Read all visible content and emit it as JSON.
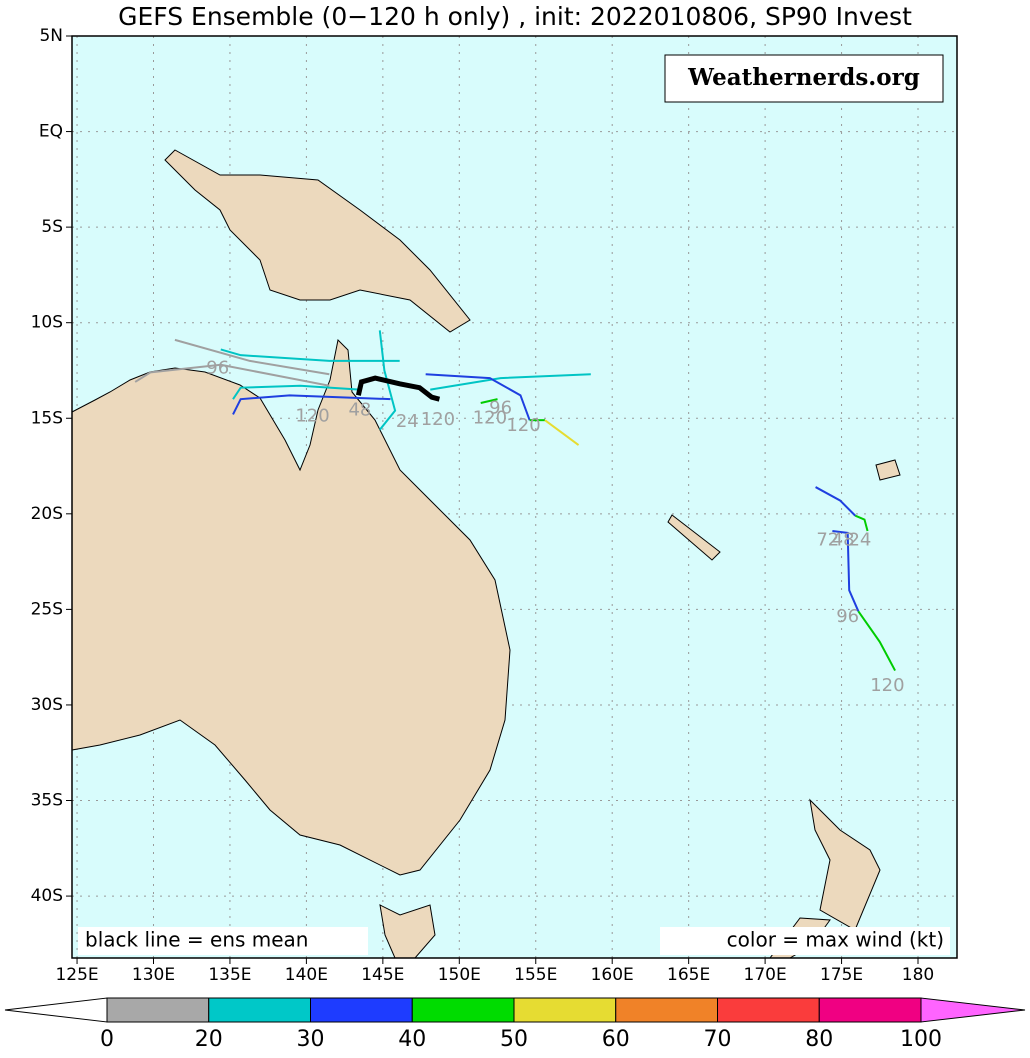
{
  "chart_data": {
    "type": "track-map",
    "title": "GEFS Ensemble (0−120 h only) , init: 2022010806, SP90 Invest",
    "watermark": "Weathernerds.org",
    "note_left": "black line = ens mean",
    "note_right": "color = max wind (kt)",
    "xlim": [
      124.67,
      182.55
    ],
    "ylim": [
      -43.24,
      5
    ],
    "xticks": [
      {
        "value": 125,
        "label": "125E"
      },
      {
        "value": 130,
        "label": "130E"
      },
      {
        "value": 135,
        "label": "135E"
      },
      {
        "value": 140,
        "label": "140E"
      },
      {
        "value": 145,
        "label": "145E"
      },
      {
        "value": 150,
        "label": "150E"
      },
      {
        "value": 155,
        "label": "155E"
      },
      {
        "value": 160,
        "label": "160E"
      },
      {
        "value": 165,
        "label": "165E"
      },
      {
        "value": 170,
        "label": "170E"
      },
      {
        "value": 175,
        "label": "175E"
      },
      {
        "value": 180,
        "label": "180"
      }
    ],
    "yticks": [
      {
        "value": 5,
        "label": "5N"
      },
      {
        "value": 0,
        "label": "EQ"
      },
      {
        "value": -5,
        "label": "5S"
      },
      {
        "value": -10,
        "label": "10S"
      },
      {
        "value": -15,
        "label": "15S"
      },
      {
        "value": -20,
        "label": "20S"
      },
      {
        "value": -25,
        "label": "25S"
      },
      {
        "value": -30,
        "label": "30S"
      },
      {
        "value": -35,
        "label": "35S"
      },
      {
        "value": -40,
        "label": "40S"
      }
    ],
    "grid": true,
    "tracks": [
      {
        "color": "#a0a0a0",
        "lon": [
          141.5,
          136.3,
          131.4
        ],
        "lat": [
          -12.7,
          -12.0,
          -10.9
        ]
      },
      {
        "color": "#a0a0a0",
        "lon": [
          141.5,
          134.4,
          129.8,
          128.8
        ],
        "lat": [
          -13.3,
          -12.2,
          -12.6,
          -13.1
        ]
      },
      {
        "color": "#00c4c4",
        "lon": [
          146.1,
          141.5,
          135.7,
          134.4
        ],
        "lat": [
          -12.0,
          -12.0,
          -11.7,
          -11.4
        ]
      },
      {
        "color": "#00c4c4",
        "lon": [
          143.5,
          139.6,
          135.7,
          135.2
        ],
        "lat": [
          -13.5,
          -13.3,
          -13.4,
          -14.0
        ]
      },
      {
        "color": "#00c4c4",
        "lon": [
          144.8,
          145.1,
          145.8,
          144.8
        ],
        "lat": [
          -10.4,
          -12.5,
          -14.6,
          -15.6
        ]
      },
      {
        "color": "#00c4c4",
        "lon": [
          148.1,
          152.7,
          158.6
        ],
        "lat": [
          -13.5,
          -12.9,
          -12.7
        ]
      },
      {
        "color": "#1f3fe0",
        "lon": [
          145.5,
          138.9,
          135.7,
          135.2
        ],
        "lat": [
          -14.0,
          -13.8,
          -14.0,
          -14.8
        ]
      },
      {
        "color": "#1f3fe0",
        "lon": [
          147.8,
          152.0,
          154.0,
          154.6
        ],
        "lat": [
          -12.7,
          -12.9,
          -13.8,
          -15.1
        ]
      },
      {
        "color": "#00cc00",
        "lon": [
          154.6,
          155.6
        ],
        "lat": [
          -15.1,
          -15.1
        ]
      },
      {
        "color": "#e6dc32",
        "lon": [
          155.6,
          157.8
        ],
        "lat": [
          -15.1,
          -16.4
        ]
      },
      {
        "color": "#00cc00",
        "lon": [
          151.4,
          152.5
        ],
        "lat": [
          -14.2,
          -14.0
        ]
      },
      {
        "color": "#1f3fe0",
        "lon": [
          173.3,
          174.9,
          175.9
        ],
        "lat": [
          -18.6,
          -19.3,
          -20.1
        ]
      },
      {
        "color": "#00cc00",
        "lon": [
          175.9,
          176.5,
          176.7
        ],
        "lat": [
          -20.1,
          -20.3,
          -20.9
        ]
      },
      {
        "color": "#1f3fe0",
        "lon": [
          174.4,
          175.4,
          175.5,
          176.1
        ],
        "lat": [
          -20.9,
          -21.0,
          -24.0,
          -25.1
        ]
      },
      {
        "color": "#00cc00",
        "lon": [
          176.1,
          177.5,
          178.5
        ],
        "lat": [
          -25.1,
          -26.7,
          -28.2
        ]
      },
      {
        "color": "#000000",
        "lon": [
          143.4,
          143.6,
          144.5,
          146.1,
          147.4,
          148.2,
          148.7
        ],
        "lat": [
          -13.8,
          -13.1,
          -12.9,
          -13.2,
          -13.4,
          -13.9,
          -14.0
        ]
      }
    ],
    "hour_labels": [
      {
        "text": "96",
        "lon": 134.2,
        "lat": -12.4
      },
      {
        "text": "120",
        "lon": 140.4,
        "lat": -14.9
      },
      {
        "text": "48",
        "lon": 143.5,
        "lat": -14.6
      },
      {
        "text": "24",
        "lon": 146.6,
        "lat": -15.2
      },
      {
        "text": "120",
        "lon": 148.6,
        "lat": -15.1
      },
      {
        "text": "120",
        "lon": 152.0,
        "lat": -15.0
      },
      {
        "text": "96",
        "lon": 152.7,
        "lat": -14.5
      },
      {
        "text": "120",
        "lon": 154.2,
        "lat": -15.4
      },
      {
        "text": "72",
        "lon": 174.1,
        "lat": -21.4
      },
      {
        "text": "48",
        "lon": 175.1,
        "lat": -21.4
      },
      {
        "text": "24",
        "lon": 176.2,
        "lat": -21.4
      },
      {
        "text": "96",
        "lon": 175.4,
        "lat": -25.4
      },
      {
        "text": "120",
        "lon": 178.0,
        "lat": -29.0
      }
    ],
    "colorbar": {
      "ticks": [
        0,
        20,
        30,
        40,
        50,
        60,
        70,
        80,
        100
      ],
      "colors": [
        "#a8a8a8",
        "#00c8c8",
        "#1e3cff",
        "#00dc00",
        "#e6dc32",
        "#f08228",
        "#fa3c3c",
        "#f00082"
      ],
      "under_color": "#ffffff",
      "over_color": "#ff64ff"
    }
  }
}
